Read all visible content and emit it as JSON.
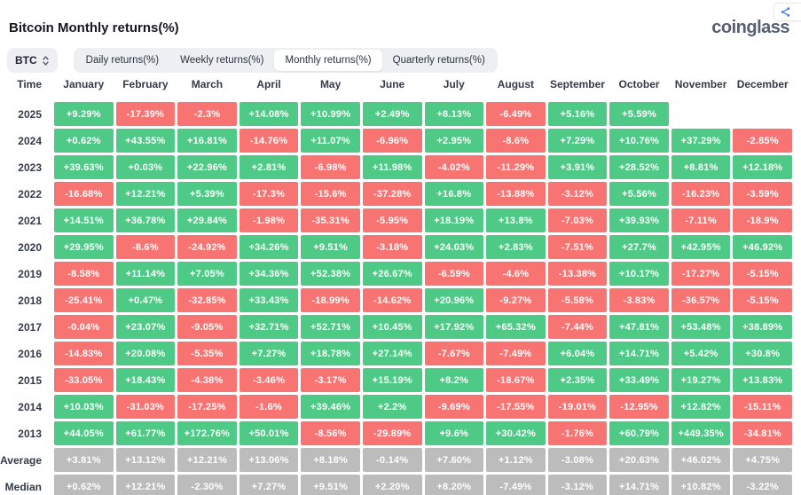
{
  "header": {
    "title": "Bitcoin Monthly returns(%)",
    "logo_text": "coinglass"
  },
  "toolbar": {
    "symbol_select": {
      "value": "BTC"
    },
    "tabs": [
      {
        "label": "Daily returns(%)",
        "active": false
      },
      {
        "label": "Weekly returns(%)",
        "active": false
      },
      {
        "label": "Monthly returns(%)",
        "active": true
      },
      {
        "label": "Quarterly returns(%)",
        "active": false
      }
    ]
  },
  "colors": {
    "positive": "#4ec986",
    "negative": "#f87473",
    "neutral": "#bcbcbc"
  },
  "table": {
    "columns": [
      "Time",
      "January",
      "February",
      "March",
      "April",
      "May",
      "June",
      "July",
      "August",
      "September",
      "October",
      "November",
      "December"
    ],
    "rows": [
      {
        "label": "2025",
        "type": "year",
        "values": [
          "+9.29%",
          "-17.39%",
          "-2.3%",
          "+14.08%",
          "+10.99%",
          "+2.49%",
          "+8.13%",
          "-6.49%",
          "+5.16%",
          "+5.59%",
          "",
          ""
        ]
      },
      {
        "label": "2024",
        "type": "year",
        "values": [
          "+0.62%",
          "+43.55%",
          "+16.81%",
          "-14.76%",
          "+11.07%",
          "-6.96%",
          "+2.95%",
          "-8.6%",
          "+7.29%",
          "+10.76%",
          "+37.29%",
          "-2.85%"
        ]
      },
      {
        "label": "2023",
        "type": "year",
        "values": [
          "+39.63%",
          "+0.03%",
          "+22.96%",
          "+2.81%",
          "-6.98%",
          "+11.98%",
          "-4.02%",
          "-11.29%",
          "+3.91%",
          "+28.52%",
          "+8.81%",
          "+12.18%"
        ]
      },
      {
        "label": "2022",
        "type": "year",
        "values": [
          "-16.68%",
          "+12.21%",
          "+5.39%",
          "-17.3%",
          "-15.6%",
          "-37.28%",
          "+16.8%",
          "-13.88%",
          "-3.12%",
          "+5.56%",
          "-16.23%",
          "-3.59%"
        ]
      },
      {
        "label": "2021",
        "type": "year",
        "values": [
          "+14.51%",
          "+36.78%",
          "+29.84%",
          "-1.98%",
          "-35.31%",
          "-5.95%",
          "+18.19%",
          "+13.8%",
          "-7.03%",
          "+39.93%",
          "-7.11%",
          "-18.9%"
        ]
      },
      {
        "label": "2020",
        "type": "year",
        "values": [
          "+29.95%",
          "-8.6%",
          "-24.92%",
          "+34.26%",
          "+9.51%",
          "-3.18%",
          "+24.03%",
          "+2.83%",
          "-7.51%",
          "+27.7%",
          "+42.95%",
          "+46.92%"
        ]
      },
      {
        "label": "2019",
        "type": "year",
        "values": [
          "-8.58%",
          "+11.14%",
          "+7.05%",
          "+34.36%",
          "+52.38%",
          "+26.67%",
          "-6.59%",
          "-4.6%",
          "-13.38%",
          "+10.17%",
          "-17.27%",
          "-5.15%"
        ]
      },
      {
        "label": "2018",
        "type": "year",
        "values": [
          "-25.41%",
          "+0.47%",
          "-32.85%",
          "+33.43%",
          "-18.99%",
          "-14.62%",
          "+20.96%",
          "-9.27%",
          "-5.58%",
          "-3.83%",
          "-36.57%",
          "-5.15%"
        ]
      },
      {
        "label": "2017",
        "type": "year",
        "values": [
          "-0.04%",
          "+23.07%",
          "-9.05%",
          "+32.71%",
          "+52.71%",
          "+10.45%",
          "+17.92%",
          "+65.32%",
          "-7.44%",
          "+47.81%",
          "+53.48%",
          "+38.89%"
        ]
      },
      {
        "label": "2016",
        "type": "year",
        "values": [
          "-14.83%",
          "+20.08%",
          "-5.35%",
          "+7.27%",
          "+18.78%",
          "+27.14%",
          "-7.67%",
          "-7.49%",
          "+6.04%",
          "+14.71%",
          "+5.42%",
          "+30.8%"
        ]
      },
      {
        "label": "2015",
        "type": "year",
        "values": [
          "-33.05%",
          "+18.43%",
          "-4.38%",
          "-3.46%",
          "-3.17%",
          "+15.19%",
          "+8.2%",
          "-18.67%",
          "+2.35%",
          "+33.49%",
          "+19.27%",
          "+13.83%"
        ]
      },
      {
        "label": "2014",
        "type": "year",
        "values": [
          "+10.03%",
          "-31.03%",
          "-17.25%",
          "-1.6%",
          "+39.46%",
          "+2.2%",
          "-9.69%",
          "-17.55%",
          "-19.01%",
          "-12.95%",
          "+12.82%",
          "-15.11%"
        ]
      },
      {
        "label": "2013",
        "type": "year",
        "values": [
          "+44.05%",
          "+61.77%",
          "+172.76%",
          "+50.01%",
          "-8.56%",
          "-29.89%",
          "+9.6%",
          "+30.42%",
          "-1.76%",
          "+60.79%",
          "+449.35%",
          "-34.81%"
        ]
      },
      {
        "label": "Average",
        "type": "summary",
        "values": [
          "+3.81%",
          "+13.12%",
          "+12.21%",
          "+13.06%",
          "+8.18%",
          "-0.14%",
          "+7.60%",
          "+1.12%",
          "-3.08%",
          "+20.63%",
          "+46.02%",
          "+4.75%"
        ]
      },
      {
        "label": "Median",
        "type": "summary",
        "values": [
          "+0.62%",
          "+12.21%",
          "-2.30%",
          "+7.27%",
          "+9.51%",
          "+2.20%",
          "+8.20%",
          "-7.49%",
          "-3.12%",
          "+14.71%",
          "+10.82%",
          "-3.22%"
        ]
      }
    ]
  }
}
